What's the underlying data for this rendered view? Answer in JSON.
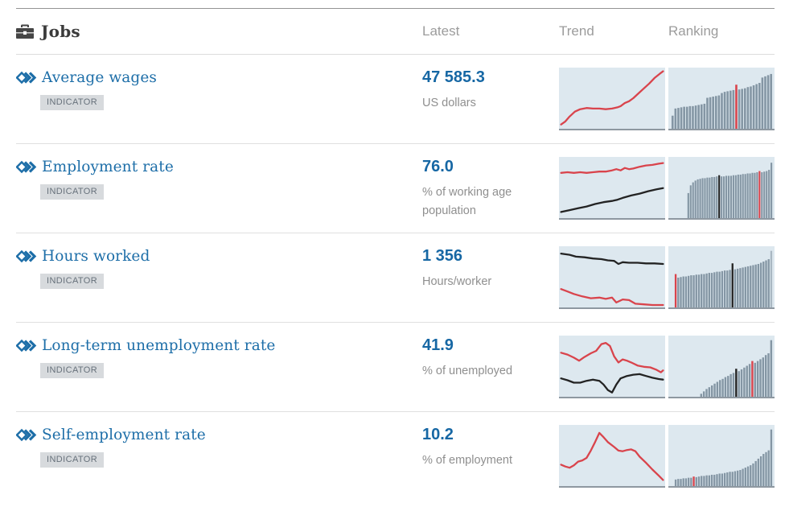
{
  "header": {
    "section_icon": "briefcase-icon",
    "section_title": "Jobs",
    "columns": [
      "Latest",
      "Trend",
      "Ranking"
    ]
  },
  "colors": {
    "red": "#d9444c",
    "black": "#232323",
    "bar_gray": "#8496a4",
    "bar_light": "#a9b7c2",
    "chart_bg": "#dde8ef",
    "link_blue": "#1d6ea8",
    "value_blue": "#1667a4"
  },
  "rows": [
    {
      "title": "Average wages",
      "badge": "INDICATOR",
      "value": "47 585.3",
      "unit": "US dollars",
      "trend": {
        "series": [
          {
            "color": "red",
            "points": [
              [
                0.02,
                0.93
              ],
              [
                0.06,
                0.88
              ],
              [
                0.1,
                0.8
              ],
              [
                0.15,
                0.72
              ],
              [
                0.2,
                0.68
              ],
              [
                0.26,
                0.66
              ],
              [
                0.32,
                0.67
              ],
              [
                0.38,
                0.67
              ],
              [
                0.44,
                0.68
              ],
              [
                0.5,
                0.67
              ],
              [
                0.55,
                0.65
              ],
              [
                0.58,
                0.63
              ],
              [
                0.62,
                0.58
              ],
              [
                0.66,
                0.55
              ],
              [
                0.7,
                0.5
              ],
              [
                0.75,
                0.42
              ],
              [
                0.8,
                0.34
              ],
              [
                0.85,
                0.26
              ],
              [
                0.9,
                0.17
              ],
              [
                0.95,
                0.1
              ],
              [
                0.98,
                0.06
              ]
            ]
          }
        ]
      },
      "ranking": {
        "offset": 0.03,
        "bars": [
          0.22,
          0.34,
          0.35,
          0.36,
          0.37,
          0.37,
          0.38,
          0.38,
          0.39,
          0.4,
          0.41,
          0.42,
          0.52,
          0.53,
          0.54,
          0.55,
          0.56,
          0.6,
          0.62,
          0.63,
          0.64,
          0.65,
          0.74,
          0.66,
          0.67,
          0.68,
          0.7,
          0.71,
          0.73,
          0.75,
          0.77,
          0.86,
          0.88,
          0.9,
          0.92
        ],
        "red_index": 22,
        "black_index": -1,
        "light_index": -1
      }
    },
    {
      "title": "Employment rate",
      "badge": "INDICATOR",
      "value": "76.0",
      "unit": "% of working age population",
      "trend": {
        "series": [
          {
            "color": "red",
            "points": [
              [
                0.02,
                0.26
              ],
              [
                0.08,
                0.25
              ],
              [
                0.14,
                0.26
              ],
              [
                0.2,
                0.25
              ],
              [
                0.26,
                0.26
              ],
              [
                0.32,
                0.25
              ],
              [
                0.38,
                0.24
              ],
              [
                0.44,
                0.24
              ],
              [
                0.5,
                0.22
              ],
              [
                0.54,
                0.2
              ],
              [
                0.58,
                0.22
              ],
              [
                0.62,
                0.18
              ],
              [
                0.66,
                0.2
              ],
              [
                0.7,
                0.19
              ],
              [
                0.76,
                0.16
              ],
              [
                0.82,
                0.14
              ],
              [
                0.88,
                0.13
              ],
              [
                0.94,
                0.11
              ],
              [
                0.98,
                0.1
              ]
            ]
          },
          {
            "color": "black",
            "points": [
              [
                0.02,
                0.9
              ],
              [
                0.1,
                0.87
              ],
              [
                0.18,
                0.84
              ],
              [
                0.26,
                0.81
              ],
              [
                0.34,
                0.77
              ],
              [
                0.42,
                0.74
              ],
              [
                0.5,
                0.72
              ],
              [
                0.55,
                0.7
              ],
              [
                0.6,
                0.67
              ],
              [
                0.68,
                0.63
              ],
              [
                0.76,
                0.6
              ],
              [
                0.84,
                0.56
              ],
              [
                0.92,
                0.53
              ],
              [
                0.98,
                0.51
              ]
            ]
          }
        ]
      },
      "ranking": {
        "offset": 0.18,
        "bars": [
          0.42,
          0.55,
          0.6,
          0.63,
          0.65,
          0.66,
          0.67,
          0.67,
          0.68,
          0.68,
          0.69,
          0.69,
          0.7,
          0.72,
          0.7,
          0.7,
          0.71,
          0.71,
          0.71,
          0.72,
          0.72,
          0.73,
          0.73,
          0.74,
          0.74,
          0.75,
          0.75,
          0.76,
          0.76,
          0.77,
          0.79,
          0.77,
          0.78,
          0.79,
          0.81,
          0.93
        ],
        "red_index": 30,
        "black_index": 13,
        "light_index": -1
      }
    },
    {
      "title": "Hours worked",
      "badge": "INDICATOR",
      "value": "1 356",
      "unit": "Hours/worker",
      "trend": {
        "series": [
          {
            "color": "black",
            "points": [
              [
                0.02,
                0.12
              ],
              [
                0.1,
                0.14
              ],
              [
                0.16,
                0.17
              ],
              [
                0.24,
                0.18
              ],
              [
                0.32,
                0.2
              ],
              [
                0.4,
                0.21
              ],
              [
                0.46,
                0.23
              ],
              [
                0.52,
                0.24
              ],
              [
                0.56,
                0.29
              ],
              [
                0.6,
                0.26
              ],
              [
                0.66,
                0.27
              ],
              [
                0.74,
                0.27
              ],
              [
                0.82,
                0.28
              ],
              [
                0.9,
                0.28
              ],
              [
                0.98,
                0.29
              ]
            ]
          },
          {
            "color": "red",
            "points": [
              [
                0.02,
                0.7
              ],
              [
                0.08,
                0.74
              ],
              [
                0.14,
                0.78
              ],
              [
                0.22,
                0.82
              ],
              [
                0.3,
                0.85
              ],
              [
                0.38,
                0.84
              ],
              [
                0.44,
                0.86
              ],
              [
                0.5,
                0.84
              ],
              [
                0.54,
                0.92
              ],
              [
                0.6,
                0.87
              ],
              [
                0.66,
                0.88
              ],
              [
                0.72,
                0.94
              ],
              [
                0.8,
                0.95
              ],
              [
                0.88,
                0.96
              ],
              [
                0.98,
                0.96
              ]
            ]
          }
        ]
      },
      "ranking": {
        "offset": 0.06,
        "bars": [
          0.56,
          0.5,
          0.51,
          0.52,
          0.52,
          0.53,
          0.54,
          0.54,
          0.55,
          0.55,
          0.56,
          0.56,
          0.57,
          0.58,
          0.58,
          0.59,
          0.6,
          0.6,
          0.61,
          0.62,
          0.62,
          0.63,
          0.74,
          0.64,
          0.65,
          0.66,
          0.67,
          0.68,
          0.69,
          0.7,
          0.71,
          0.72,
          0.73,
          0.75,
          0.77,
          0.79,
          0.81,
          0.95
        ],
        "red_index": 0,
        "black_index": 22,
        "light_index": 37
      }
    },
    {
      "title": "Long-term unemployment rate",
      "badge": "INDICATOR",
      "value": "41.9",
      "unit": "% of unemployed",
      "trend": {
        "series": [
          {
            "color": "red",
            "points": [
              [
                0.02,
                0.28
              ],
              [
                0.08,
                0.31
              ],
              [
                0.14,
                0.36
              ],
              [
                0.19,
                0.41
              ],
              [
                0.24,
                0.35
              ],
              [
                0.3,
                0.29
              ],
              [
                0.35,
                0.25
              ],
              [
                0.4,
                0.14
              ],
              [
                0.44,
                0.12
              ],
              [
                0.48,
                0.17
              ],
              [
                0.52,
                0.34
              ],
              [
                0.56,
                0.44
              ],
              [
                0.6,
                0.39
              ],
              [
                0.64,
                0.41
              ],
              [
                0.68,
                0.44
              ],
              [
                0.74,
                0.49
              ],
              [
                0.8,
                0.51
              ],
              [
                0.86,
                0.52
              ],
              [
                0.92,
                0.56
              ],
              [
                0.96,
                0.6
              ],
              [
                0.98,
                0.57
              ]
            ]
          },
          {
            "color": "black",
            "points": [
              [
                0.02,
                0.7
              ],
              [
                0.08,
                0.73
              ],
              [
                0.14,
                0.77
              ],
              [
                0.2,
                0.77
              ],
              [
                0.26,
                0.74
              ],
              [
                0.32,
                0.72
              ],
              [
                0.38,
                0.74
              ],
              [
                0.42,
                0.8
              ],
              [
                0.46,
                0.89
              ],
              [
                0.5,
                0.93
              ],
              [
                0.54,
                0.8
              ],
              [
                0.58,
                0.7
              ],
              [
                0.64,
                0.66
              ],
              [
                0.7,
                0.64
              ],
              [
                0.76,
                0.63
              ],
              [
                0.82,
                0.66
              ],
              [
                0.88,
                0.69
              ],
              [
                0.94,
                0.71
              ],
              [
                0.98,
                0.72
              ]
            ]
          }
        ]
      },
      "ranking": {
        "offset": 0.3,
        "bars": [
          0.05,
          0.09,
          0.13,
          0.16,
          0.19,
          0.22,
          0.25,
          0.28,
          0.3,
          0.33,
          0.35,
          0.38,
          0.4,
          0.47,
          0.43,
          0.46,
          0.49,
          0.52,
          0.55,
          0.6,
          0.57,
          0.6,
          0.63,
          0.66,
          0.7,
          0.73,
          0.95
        ],
        "red_index": 19,
        "black_index": 13,
        "light_index": -1
      }
    },
    {
      "title": "Self-employment rate",
      "badge": "INDICATOR",
      "value": "10.2",
      "unit": "% of employment",
      "trend": {
        "series": [
          {
            "color": "red",
            "points": [
              [
                0.02,
                0.65
              ],
              [
                0.06,
                0.68
              ],
              [
                0.1,
                0.7
              ],
              [
                0.14,
                0.66
              ],
              [
                0.18,
                0.6
              ],
              [
                0.22,
                0.58
              ],
              [
                0.26,
                0.54
              ],
              [
                0.3,
                0.42
              ],
              [
                0.34,
                0.28
              ],
              [
                0.38,
                0.13
              ],
              [
                0.42,
                0.2
              ],
              [
                0.46,
                0.28
              ],
              [
                0.52,
                0.36
              ],
              [
                0.56,
                0.42
              ],
              [
                0.6,
                0.43
              ],
              [
                0.64,
                0.41
              ],
              [
                0.68,
                0.4
              ],
              [
                0.72,
                0.43
              ],
              [
                0.76,
                0.52
              ],
              [
                0.82,
                0.62
              ],
              [
                0.88,
                0.73
              ],
              [
                0.94,
                0.83
              ],
              [
                0.98,
                0.9
              ]
            ]
          }
        ]
      },
      "ranking": {
        "offset": 0.06,
        "bars": [
          0.11,
          0.12,
          0.12,
          0.13,
          0.13,
          0.14,
          0.14,
          0.16,
          0.15,
          0.16,
          0.17,
          0.17,
          0.18,
          0.18,
          0.19,
          0.19,
          0.2,
          0.21,
          0.21,
          0.22,
          0.23,
          0.24,
          0.24,
          0.25,
          0.26,
          0.27,
          0.29,
          0.31,
          0.33,
          0.35,
          0.38,
          0.42,
          0.46,
          0.5,
          0.54,
          0.57,
          0.6,
          0.95
        ],
        "red_index": 7,
        "black_index": -1,
        "light_index": -1
      }
    }
  ]
}
